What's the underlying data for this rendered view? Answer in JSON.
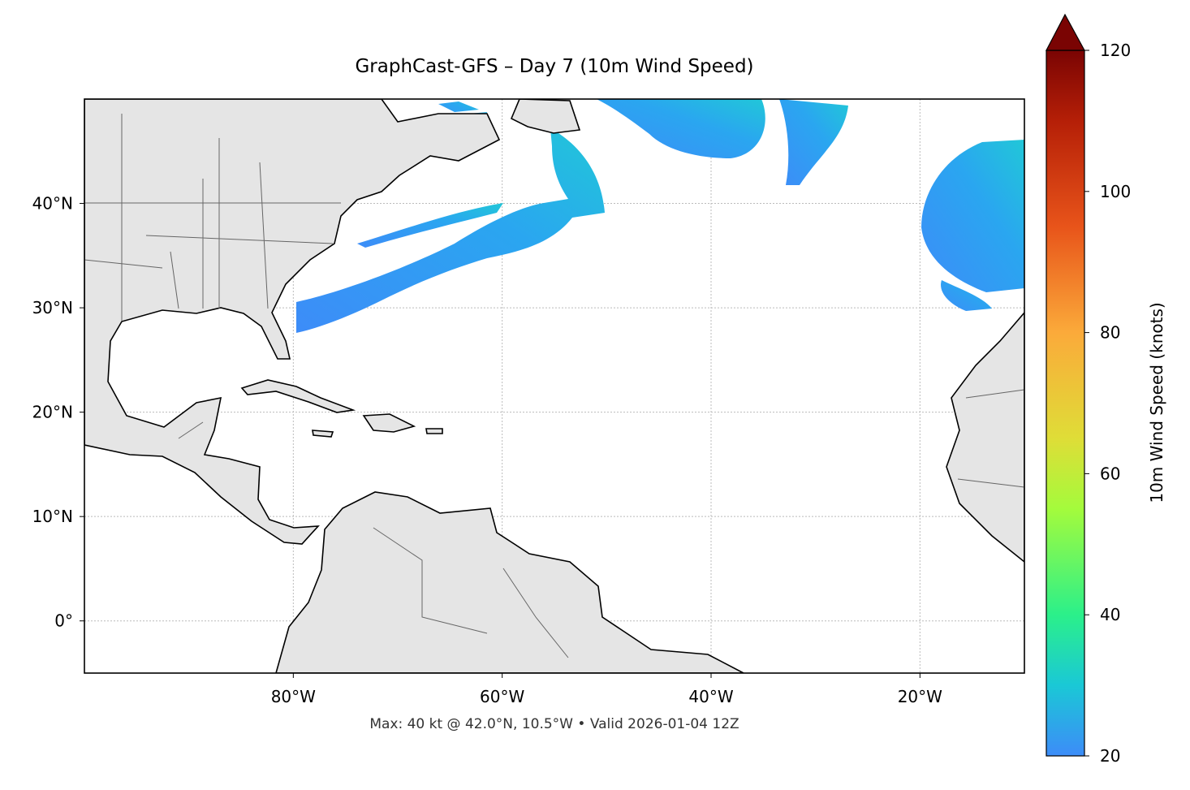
{
  "map": {
    "title": "GraphCast-GFS – Day 7 (10m Wind Speed)",
    "footer": "Max: 40 kt @ 42.0°N, 10.5°W • Valid 2026-01-04 12Z",
    "xlim": [
      -100,
      -10
    ],
    "ylim": [
      -5,
      50
    ],
    "xticks": [
      {
        "value": -80,
        "label": "80°W"
      },
      {
        "value": -60,
        "label": "60°W"
      },
      {
        "value": -40,
        "label": "40°W"
      },
      {
        "value": -20,
        "label": "20°W"
      }
    ],
    "yticks": [
      {
        "value": 0,
        "label": "0°"
      },
      {
        "value": 10,
        "label": "10°N"
      },
      {
        "value": 20,
        "label": "20°N"
      },
      {
        "value": 30,
        "label": "30°N"
      },
      {
        "value": 40,
        "label": "40°N"
      }
    ],
    "grid": true,
    "colorbar": {
      "label": "10m Wind Speed (knots)",
      "lim": [
        20,
        120
      ],
      "ticks": [
        20,
        40,
        60,
        80,
        100,
        120
      ]
    }
  }
}
